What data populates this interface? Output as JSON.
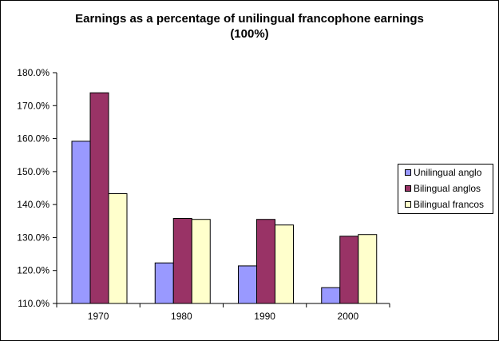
{
  "chart_data": {
    "type": "bar",
    "title_line1": "Earnings as a percentage of unilingual francophone earnings",
    "title_line2": "(100%)",
    "categories": [
      "1970",
      "1980",
      "1990",
      "2000"
    ],
    "series": [
      {
        "name": "Unilingual anglo",
        "color": "#9999ff",
        "values": [
          159.2,
          122.3,
          121.4,
          114.8
        ]
      },
      {
        "name": "Bilingual anglos",
        "color": "#993366",
        "values": [
          173.9,
          135.8,
          135.5,
          130.4
        ]
      },
      {
        "name": "Bilingual francos",
        "color": "#ffffcc",
        "values": [
          143.3,
          135.5,
          133.8,
          130.9
        ]
      }
    ],
    "yticks": [
      "110.0%",
      "120.0%",
      "130.0%",
      "140.0%",
      "150.0%",
      "160.0%",
      "170.0%",
      "180.0%"
    ],
    "ylim": [
      110,
      180
    ],
    "grid": false,
    "legend_position": "right"
  }
}
